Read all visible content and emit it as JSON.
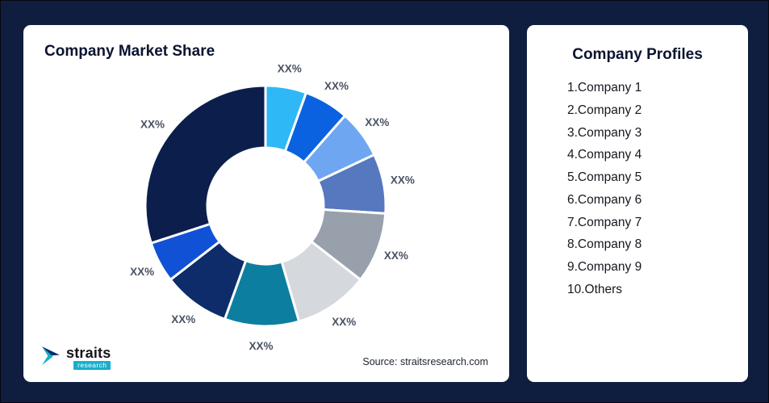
{
  "page": {
    "background": "#0F1D3F"
  },
  "market_share_card": {
    "title": "Company Market Share",
    "source_text": "Source: straitsresearch.com",
    "logo": {
      "brand": "straits",
      "sub_brand": "research"
    }
  },
  "profiles_card": {
    "title": "Company Profiles",
    "items": [
      "1.Company 1",
      "2.Company 2",
      "3.Company 3",
      "4.Company 4",
      "5.Company 5",
      "6.Company 6",
      "7.Company 7",
      "8.Company 8",
      "9.Company 9",
      "10.Others"
    ]
  },
  "chart_data": {
    "type": "pie",
    "subtype": "donut",
    "title": "Company Market Share",
    "categories": [
      "Company 1",
      "Company 2",
      "Company 3",
      "Company 4",
      "Company 5",
      "Company 6",
      "Company 7",
      "Company 8",
      "Company 9",
      "Others"
    ],
    "values": [
      5.5,
      6,
      6.5,
      8,
      9.5,
      10,
      10,
      9,
      5.5,
      30
    ],
    "value_labels": [
      "XX%",
      "XX%",
      "XX%",
      "XX%",
      "XX%",
      "XX%",
      "XX%",
      "XX%",
      "XX%",
      "XX%"
    ],
    "colors": [
      "#2EB8F5",
      "#0A62E0",
      "#6FA6F2",
      "#5578BE",
      "#98A0AC",
      "#D5D8DD",
      "#0C7FA0",
      "#0D2C69",
      "#1151D6",
      "#0C1F4C"
    ],
    "label_color": "#4A5264",
    "start_angle_deg": 0,
    "direction": "clockwise",
    "legend_position": "none"
  }
}
